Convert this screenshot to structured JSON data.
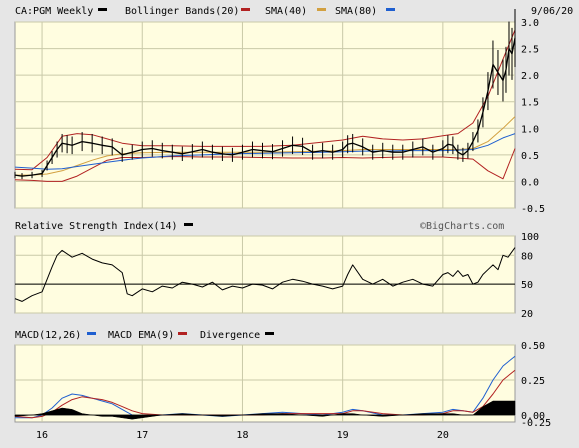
{
  "header": {
    "symbol_label": "CA:PGM Weekly",
    "date": "9/06/20",
    "legend": [
      {
        "label": "Bollinger Bands(20)",
        "color": "#000000"
      },
      {
        "label": "SMA(40)",
        "color": "#b22222"
      },
      {
        "label": "SMA(80)",
        "color": "#d2a040"
      },
      {
        "label": "",
        "color": "#1f5fd0"
      }
    ]
  },
  "rsi_header": {
    "label": "Relative Strength Index(14)",
    "color": "#000000",
    "credit": "©BigCharts.com"
  },
  "macd_header": {
    "legend": [
      {
        "label": "MACD(12,26)",
        "color": "#1f5fd0"
      },
      {
        "label": "MACD EMA(9)",
        "color": "#b22222"
      },
      {
        "label": "Divergence",
        "color": "#000000"
      }
    ]
  },
  "colors": {
    "plot_bg": "#fffde0",
    "panel_bg": "#e6e6e6",
    "grid": "#c9c9a8",
    "price": "#000000",
    "bb": "#b22222",
    "sma40": "#d2a040",
    "sma80": "#1f5fd0",
    "macd": "#1f5fd0",
    "macd_ema": "#b22222",
    "divergence": "#000000"
  },
  "chart_data": [
    {
      "type": "line",
      "panel": "price",
      "x_tick_labels": [
        "16",
        "17",
        "18",
        "19",
        "20"
      ],
      "x_tick_positions": [
        2016.0,
        2017.0,
        2018.0,
        2019.0,
        2020.0
      ],
      "xlim": [
        2015.73,
        2020.72
      ],
      "ylim": [
        -0.5,
        3.0
      ],
      "y_ticks": [
        "3.0",
        "2.5",
        "2.0",
        "1.5",
        "1.0",
        "0.5",
        "0.0",
        "-0.5"
      ],
      "y_tick_values": [
        3.0,
        2.5,
        2.0,
        1.5,
        1.0,
        0.5,
        0.0,
        -0.5
      ],
      "series": [
        {
          "name": "Bollinger Bands(20)",
          "role": "bb_upper",
          "x": [
            2015.73,
            2015.9,
            2016.05,
            2016.2,
            2016.35,
            2016.5,
            2016.65,
            2016.8,
            2017.0,
            2017.3,
            2017.6,
            2017.9,
            2018.2,
            2018.5,
            2018.8,
            2019.0,
            2019.2,
            2019.4,
            2019.6,
            2019.8,
            2020.0,
            2020.15,
            2020.3,
            2020.45,
            2020.6,
            2020.72
          ],
          "y": [
            0.23,
            0.22,
            0.45,
            0.85,
            0.9,
            0.88,
            0.8,
            0.72,
            0.67,
            0.67,
            0.66,
            0.66,
            0.66,
            0.68,
            0.74,
            0.78,
            0.85,
            0.8,
            0.78,
            0.8,
            0.86,
            0.9,
            1.1,
            1.6,
            2.3,
            2.85
          ]
        },
        {
          "name": "Bollinger Bands(20)",
          "role": "bb_lower",
          "x": [
            2015.73,
            2015.9,
            2016.05,
            2016.2,
            2016.35,
            2016.5,
            2016.65,
            2016.8,
            2017.0,
            2017.3,
            2017.6,
            2017.9,
            2018.2,
            2018.5,
            2018.8,
            2019.0,
            2019.2,
            2019.4,
            2019.6,
            2019.8,
            2020.0,
            2020.15,
            2020.3,
            2020.45,
            2020.6,
            2020.72
          ],
          "y": [
            0.03,
            0.02,
            0.0,
            0.0,
            0.1,
            0.25,
            0.4,
            0.45,
            0.45,
            0.47,
            0.46,
            0.46,
            0.45,
            0.44,
            0.44,
            0.45,
            0.44,
            0.45,
            0.46,
            0.46,
            0.46,
            0.44,
            0.42,
            0.2,
            0.05,
            0.62
          ]
        },
        {
          "name": "SMA(40)",
          "x": [
            2015.73,
            2015.9,
            2016.05,
            2016.2,
            2016.35,
            2016.5,
            2016.65,
            2016.8,
            2017.0,
            2017.3,
            2017.6,
            2017.9,
            2018.2,
            2018.5,
            2018.8,
            2019.0,
            2019.2,
            2019.4,
            2019.6,
            2019.8,
            2020.0,
            2020.15,
            2020.3,
            2020.45,
            2020.6,
            2020.72
          ],
          "y": [
            0.12,
            0.12,
            0.14,
            0.2,
            0.3,
            0.4,
            0.48,
            0.52,
            0.54,
            0.55,
            0.55,
            0.55,
            0.55,
            0.56,
            0.57,
            0.58,
            0.6,
            0.6,
            0.6,
            0.6,
            0.6,
            0.6,
            0.62,
            0.75,
            1.0,
            1.22
          ]
        },
        {
          "name": "SMA(80)",
          "x": [
            2015.73,
            2015.9,
            2016.05,
            2016.2,
            2016.35,
            2016.5,
            2016.65,
            2016.8,
            2017.0,
            2017.3,
            2017.6,
            2017.9,
            2018.2,
            2018.5,
            2018.8,
            2019.0,
            2019.2,
            2019.4,
            2019.6,
            2019.8,
            2020.0,
            2020.15,
            2020.3,
            2020.45,
            2020.6,
            2020.72
          ],
          "y": [
            0.27,
            0.25,
            0.23,
            0.24,
            0.28,
            0.32,
            0.36,
            0.4,
            0.44,
            0.48,
            0.5,
            0.52,
            0.53,
            0.54,
            0.55,
            0.56,
            0.57,
            0.57,
            0.58,
            0.58,
            0.58,
            0.59,
            0.6,
            0.68,
            0.82,
            0.9
          ]
        },
        {
          "name": "",
          "role": "price",
          "x": [
            2015.73,
            2015.8,
            2015.9,
            2016.0,
            2016.05,
            2016.1,
            2016.15,
            2016.2,
            2016.25,
            2016.3,
            2016.4,
            2016.5,
            2016.6,
            2016.7,
            2016.8,
            2016.9,
            2017.0,
            2017.1,
            2017.2,
            2017.3,
            2017.4,
            2017.5,
            2017.6,
            2017.7,
            2017.8,
            2017.9,
            2018.0,
            2018.1,
            2018.2,
            2018.3,
            2018.4,
            2018.5,
            2018.6,
            2018.7,
            2018.8,
            2018.9,
            2019.0,
            2019.05,
            2019.1,
            2019.2,
            2019.3,
            2019.4,
            2019.5,
            2019.6,
            2019.7,
            2019.8,
            2019.9,
            2020.0,
            2020.05,
            2020.1,
            2020.15,
            2020.2,
            2020.25,
            2020.3,
            2020.35,
            2020.4,
            2020.45,
            2020.5,
            2020.55,
            2020.6,
            2020.63,
            2020.66,
            2020.69,
            2020.72
          ],
          "y": [
            0.12,
            0.1,
            0.12,
            0.15,
            0.3,
            0.45,
            0.6,
            0.72,
            0.7,
            0.68,
            0.75,
            0.72,
            0.68,
            0.65,
            0.5,
            0.55,
            0.6,
            0.62,
            0.58,
            0.55,
            0.52,
            0.56,
            0.6,
            0.55,
            0.52,
            0.5,
            0.55,
            0.6,
            0.58,
            0.56,
            0.62,
            0.68,
            0.66,
            0.55,
            0.58,
            0.55,
            0.6,
            0.7,
            0.72,
            0.65,
            0.55,
            0.58,
            0.55,
            0.55,
            0.6,
            0.65,
            0.55,
            0.62,
            0.7,
            0.68,
            0.55,
            0.5,
            0.58,
            0.75,
            0.95,
            1.3,
            1.7,
            2.2,
            2.05,
            1.9,
            2.1,
            2.5,
            2.4,
            2.7
          ]
        }
      ]
    },
    {
      "type": "line",
      "panel": "rsi",
      "xlim": [
        2015.73,
        2020.72
      ],
      "ylim": [
        20,
        100
      ],
      "y_ticks": [
        "100",
        "80",
        "50",
        "20"
      ],
      "y_tick_values": [
        100,
        80,
        50,
        20
      ],
      "reference_line": 50,
      "series": [
        {
          "name": "Relative Strength Index(14)",
          "x": [
            2015.73,
            2015.8,
            2015.9,
            2016.0,
            2016.05,
            2016.1,
            2016.15,
            2016.2,
            2016.3,
            2016.4,
            2016.5,
            2016.6,
            2016.7,
            2016.8,
            2016.85,
            2016.9,
            2017.0,
            2017.1,
            2017.2,
            2017.3,
            2017.4,
            2017.5,
            2017.6,
            2017.7,
            2017.8,
            2017.9,
            2018.0,
            2018.1,
            2018.2,
            2018.3,
            2018.4,
            2018.5,
            2018.6,
            2018.7,
            2018.8,
            2018.9,
            2019.0,
            2019.05,
            2019.1,
            2019.2,
            2019.3,
            2019.4,
            2019.5,
            2019.6,
            2019.7,
            2019.8,
            2019.9,
            2020.0,
            2020.05,
            2020.1,
            2020.15,
            2020.2,
            2020.25,
            2020.3,
            2020.35,
            2020.4,
            2020.45,
            2020.5,
            2020.55,
            2020.6,
            2020.65,
            2020.72
          ],
          "y": [
            35,
            32,
            38,
            42,
            55,
            68,
            80,
            85,
            78,
            82,
            76,
            72,
            70,
            62,
            40,
            38,
            45,
            42,
            48,
            46,
            52,
            50,
            47,
            52,
            44,
            48,
            46,
            50,
            49,
            45,
            52,
            55,
            53,
            50,
            48,
            45,
            48,
            60,
            70,
            55,
            50,
            55,
            48,
            52,
            55,
            50,
            48,
            60,
            62,
            58,
            64,
            58,
            60,
            50,
            52,
            60,
            65,
            70,
            65,
            80,
            78,
            88
          ]
        }
      ]
    },
    {
      "type": "line",
      "panel": "macd",
      "xlim": [
        2015.73,
        2020.72
      ],
      "ylim": [
        -0.05,
        0.5
      ],
      "y_ticks": [
        "0.50",
        "0.25",
        "0.00",
        "-0.25"
      ],
      "y_tick_values": [
        0.5,
        0.25,
        0.0,
        -0.25
      ],
      "series": [
        {
          "name": "MACD(12,26)",
          "x": [
            2015.73,
            2015.9,
            2016.0,
            2016.1,
            2016.2,
            2016.3,
            2016.4,
            2016.5,
            2016.6,
            2016.7,
            2016.8,
            2016.9,
            2017.0,
            2017.2,
            2017.4,
            2017.6,
            2017.8,
            2018.0,
            2018.2,
            2018.4,
            2018.6,
            2018.8,
            2019.0,
            2019.1,
            2019.2,
            2019.4,
            2019.6,
            2019.8,
            2020.0,
            2020.1,
            2020.2,
            2020.3,
            2020.4,
            2020.5,
            2020.6,
            2020.72
          ],
          "y": [
            -0.02,
            -0.02,
            0.0,
            0.05,
            0.12,
            0.15,
            0.14,
            0.12,
            0.1,
            0.08,
            0.04,
            0.0,
            -0.01,
            0.0,
            0.01,
            0.0,
            -0.01,
            0.0,
            0.01,
            0.02,
            0.01,
            0.0,
            0.02,
            0.04,
            0.03,
            0.0,
            0.0,
            0.01,
            0.02,
            0.04,
            0.03,
            0.02,
            0.12,
            0.25,
            0.35,
            0.42
          ]
        },
        {
          "name": "MACD EMA(9)",
          "x": [
            2015.73,
            2015.9,
            2016.0,
            2016.1,
            2016.2,
            2016.3,
            2016.4,
            2016.5,
            2016.6,
            2016.7,
            2016.8,
            2016.9,
            2017.0,
            2017.2,
            2017.4,
            2017.6,
            2017.8,
            2018.0,
            2018.2,
            2018.4,
            2018.6,
            2018.8,
            2019.0,
            2019.1,
            2019.2,
            2019.4,
            2019.6,
            2019.8,
            2020.0,
            2020.1,
            2020.2,
            2020.3,
            2020.4,
            2020.5,
            2020.6,
            2020.72
          ],
          "y": [
            -0.01,
            -0.02,
            -0.01,
            0.02,
            0.07,
            0.11,
            0.13,
            0.12,
            0.11,
            0.09,
            0.06,
            0.03,
            0.01,
            0.0,
            0.0,
            0.0,
            0.0,
            0.0,
            0.0,
            0.01,
            0.01,
            0.01,
            0.01,
            0.03,
            0.03,
            0.01,
            0.0,
            0.0,
            0.01,
            0.03,
            0.03,
            0.02,
            0.06,
            0.15,
            0.25,
            0.32
          ]
        },
        {
          "name": "Divergence",
          "role": "histogram",
          "x": [
            2015.73,
            2015.9,
            2016.0,
            2016.1,
            2016.2,
            2016.3,
            2016.4,
            2016.5,
            2016.6,
            2016.7,
            2016.8,
            2016.9,
            2017.0,
            2017.2,
            2017.4,
            2017.6,
            2017.8,
            2018.0,
            2018.2,
            2018.4,
            2018.6,
            2018.8,
            2019.0,
            2019.1,
            2019.2,
            2019.4,
            2019.6,
            2019.8,
            2020.0,
            2020.1,
            2020.2,
            2020.3,
            2020.4,
            2020.5,
            2020.6,
            2020.72
          ],
          "y": [
            -0.01,
            0.0,
            0.01,
            0.03,
            0.05,
            0.04,
            0.01,
            0.0,
            -0.01,
            -0.01,
            -0.02,
            -0.03,
            -0.02,
            0.0,
            0.01,
            0.0,
            -0.01,
            0.0,
            0.01,
            0.01,
            0.0,
            -0.01,
            0.01,
            0.01,
            0.0,
            -0.01,
            0.0,
            0.01,
            0.01,
            0.01,
            0.0,
            0.0,
            0.06,
            0.1,
            0.1,
            0.1
          ]
        }
      ]
    }
  ]
}
